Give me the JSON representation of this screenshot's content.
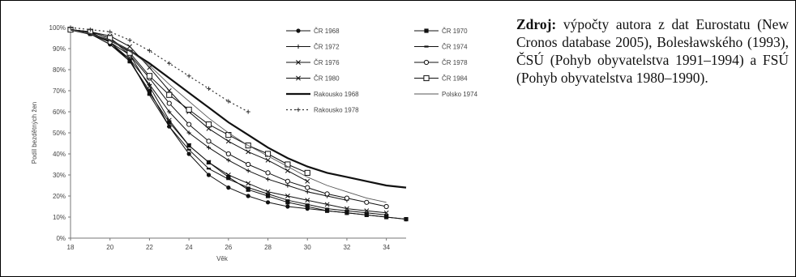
{
  "source_note": {
    "lead": "Zdroj:",
    "text": " výpočty autora z dat Eurostatu (New Cronos database 2005), Bolesławského (1993), ČSÚ (Pohyb obyvatelstva 1991–1994) a FSÚ (Pohyb obyvatelstva 1980–1990)."
  },
  "chart_data": {
    "type": "line",
    "title": "",
    "xlabel": "Věk",
    "ylabel": "Podíl bezdětných žen",
    "xlim": [
      18,
      35
    ],
    "ylim": [
      0,
      100
    ],
    "x_ticks": [
      18,
      20,
      22,
      24,
      26,
      28,
      30,
      32,
      34
    ],
    "y_ticks": [
      "0%",
      "10%",
      "20%",
      "30%",
      "40%",
      "50%",
      "60%",
      "70%",
      "80%",
      "90%",
      "100%"
    ],
    "grid": false,
    "legend_position": "top-right",
    "series": [
      {
        "name": "ČR 1968",
        "marker": "filled-circle",
        "color": "#111111",
        "x": [
          18,
          19,
          20,
          21,
          22,
          23,
          24,
          25,
          26,
          27,
          28,
          29,
          30,
          31,
          32,
          33,
          34,
          35
        ],
        "y": [
          99,
          97,
          92,
          84,
          70,
          53,
          40,
          30,
          24,
          20,
          17,
          15,
          14,
          13,
          12,
          11,
          10,
          9
        ]
      },
      {
        "name": "ČR 1970",
        "marker": "filled-square",
        "color": "#111111",
        "x": [
          18,
          19,
          20,
          21,
          22,
          23,
          24,
          25,
          26,
          27,
          28,
          29,
          30,
          31,
          32,
          33,
          34,
          35
        ],
        "y": [
          99,
          97,
          93,
          84,
          69,
          55,
          44,
          36,
          29,
          23,
          20,
          17,
          15,
          13,
          12,
          11,
          10,
          9
        ]
      },
      {
        "name": "ČR 1972",
        "marker": "plus",
        "color": "#111111",
        "x": [
          18,
          19,
          20,
          21,
          22,
          23,
          24,
          25,
          26,
          27,
          28,
          29,
          30,
          31,
          32
        ],
        "y": [
          99,
          97,
          92,
          85,
          73,
          60,
          50,
          43,
          37,
          32,
          28,
          25,
          22,
          20,
          18
        ]
      },
      {
        "name": "ČR 1974",
        "marker": "bar",
        "color": "#111111",
        "x": [
          18,
          19,
          20,
          21,
          22,
          23,
          24,
          25,
          26,
          27,
          28,
          29,
          30,
          31,
          32,
          33,
          34
        ],
        "y": [
          99,
          98,
          93,
          85,
          68,
          53,
          42,
          33,
          28,
          24,
          21,
          18,
          16,
          14,
          13,
          12,
          11
        ]
      },
      {
        "name": "ČR 1976",
        "marker": "x",
        "color": "#111111",
        "x": [
          18,
          19,
          20,
          21,
          22,
          23,
          24,
          25,
          26,
          27,
          28,
          29,
          30,
          31,
          32,
          33,
          34
        ],
        "y": [
          99,
          98,
          95,
          87,
          72,
          56,
          44,
          36,
          30,
          26,
          22,
          20,
          18,
          16,
          14,
          13,
          12
        ]
      },
      {
        "name": "ČR 1978",
        "marker": "open-circle",
        "color": "#111111",
        "x": [
          18,
          19,
          20,
          21,
          22,
          23,
          24,
          25,
          26,
          27,
          28,
          29,
          30,
          31,
          32,
          33,
          34
        ],
        "y": [
          99,
          98,
          93,
          87,
          76,
          64,
          54,
          46,
          40,
          35,
          31,
          27,
          24,
          21,
          19,
          17,
          15
        ]
      },
      {
        "name": "ČR 1980",
        "marker": "x",
        "color": "#111111",
        "x": [
          18,
          19,
          20,
          21,
          22,
          23,
          24,
          25,
          26,
          27,
          28,
          29,
          30
        ],
        "y": [
          99,
          98,
          96,
          91,
          81,
          70,
          60,
          52,
          46,
          41,
          37,
          32,
          27
        ]
      },
      {
        "name": "ČR 1984",
        "marker": "open-square",
        "color": "#111111",
        "x": [
          18,
          19,
          20,
          21,
          22,
          23,
          24,
          25,
          26,
          27,
          28,
          29,
          30
        ],
        "y": [
          99,
          98,
          95,
          88,
          77,
          68,
          61,
          54,
          49,
          44,
          40,
          35,
          31
        ]
      },
      {
        "name": "Rakousko 1968",
        "marker": "none",
        "color": "#111111",
        "style": "thick",
        "x": [
          18,
          19,
          20,
          21,
          22,
          23,
          24,
          25,
          26,
          27,
          28,
          29,
          30,
          31,
          32,
          33,
          34,
          35
        ],
        "y": [
          99,
          97,
          94,
          89,
          83,
          76,
          69,
          62,
          55,
          49,
          43,
          38,
          34,
          31,
          29,
          27,
          25,
          24
        ]
      },
      {
        "name": "Polsko 1974",
        "marker": "none",
        "color": "#555555",
        "style": "thin",
        "x": [
          18,
          19,
          20,
          21,
          22,
          23,
          24,
          25,
          26,
          27,
          28,
          29,
          30,
          31,
          32,
          33,
          34
        ],
        "y": [
          99,
          97,
          94,
          89,
          82,
          73,
          65,
          57,
          50,
          44,
          39,
          34,
          29,
          25,
          22,
          19,
          17
        ]
      },
      {
        "name": "Rakousko 1978",
        "marker": "plus",
        "color": "#333333",
        "style": "dotted",
        "x": [
          18,
          19,
          20,
          21,
          22,
          23,
          24,
          25,
          26,
          27
        ],
        "y": [
          100,
          99,
          98,
          94,
          89,
          83,
          77,
          71,
          65,
          60
        ]
      }
    ]
  }
}
